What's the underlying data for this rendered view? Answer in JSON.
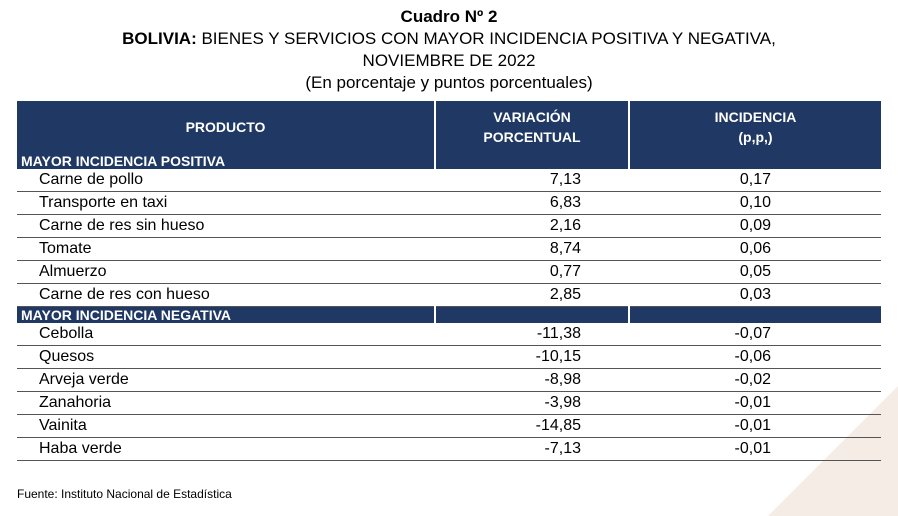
{
  "title": "Cuadro Nº 2",
  "subtitle_bold": "BOLIVIA:",
  "subtitle_rest": " BIENES Y SERVICIOS CON MAYOR INCIDENCIA POSITIVA Y NEGATIVA,",
  "subtitle_line2": "NOVIEMBRE DE 2022",
  "units": "(En porcentaje y puntos porcentuales)",
  "headers": {
    "producto": "PRODUCTO",
    "variacion_l1": "VARIACIÓN",
    "variacion_l2": "PORCENTUAL",
    "incidencia_l1": "INCIDENCIA",
    "incidencia_l2": "(p,p,)"
  },
  "positive": {
    "label": "MAYOR INCIDENCIA POSITIVA",
    "rows": [
      {
        "name": "Carne de pollo",
        "var": "7,13",
        "inc": "0,17"
      },
      {
        "name": "Transporte en taxi",
        "var": "6,83",
        "inc": "0,10"
      },
      {
        "name": "Carne de res sin hueso",
        "var": "2,16",
        "inc": "0,09"
      },
      {
        "name": "Tomate",
        "var": "8,74",
        "inc": "0,06"
      },
      {
        "name": "Almuerzo",
        "var": "0,77",
        "inc": "0,05"
      },
      {
        "name": "Carne de res con hueso",
        "var": "2,85",
        "inc": "0,03"
      }
    ]
  },
  "negative": {
    "label": "MAYOR INCIDENCIA NEGATIVA",
    "rows": [
      {
        "name": "Cebolla",
        "var": "-11,38",
        "inc": "-0,07"
      },
      {
        "name": "Quesos",
        "var": "-10,15",
        "inc": "-0,06"
      },
      {
        "name": "Arveja verde",
        "var": "-8,98",
        "inc": "-0,02"
      },
      {
        "name": "Zanahoria",
        "var": "-3,98",
        "inc": "-0,01"
      },
      {
        "name": "Vainita",
        "var": "-14,85",
        "inc": "-0,01"
      },
      {
        "name": "Haba verde",
        "var": "-7,13",
        "inc": "-0,01"
      }
    ]
  },
  "source": "Fuente: Instituto Nacional de Estadística",
  "colors": {
    "header_bg": "#1f3864",
    "header_text": "#ffffff"
  }
}
